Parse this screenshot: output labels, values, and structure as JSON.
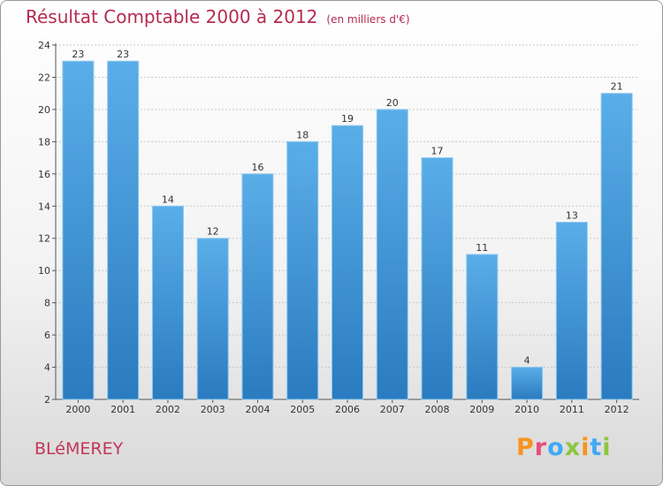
{
  "header": {
    "title": "Résultat Comptable 2000 à 2012",
    "unit": "(en milliers d'€)"
  },
  "footer": {
    "commune": "BLéMEREY",
    "logo": "Proxiti",
    "logo_colors": [
      "#f7941d",
      "#e94e77",
      "#3fa9f5",
      "#8dc63f",
      "#f7941d",
      "#3fa9f5",
      "#8dc63f"
    ]
  },
  "colors": {
    "bar_light": "#5aaee8",
    "bar_dark": "#2a7bbf",
    "title": "#b52a52",
    "gridline": "#c8c8c8"
  },
  "chart_data": {
    "type": "bar",
    "categories": [
      "2000",
      "2001",
      "2002",
      "2003",
      "2004",
      "2005",
      "2006",
      "2007",
      "2008",
      "2009",
      "2010",
      "2011",
      "2012"
    ],
    "values": [
      23,
      23,
      14,
      12,
      16,
      18,
      19,
      20,
      17,
      11,
      4,
      13,
      21
    ],
    "title": "Résultat Comptable 2000 à 2012",
    "subtitle": "(en milliers d'€)",
    "xlabel": "",
    "ylabel": "",
    "ylim": [
      2,
      24
    ],
    "yticks": [
      2,
      4,
      6,
      8,
      10,
      12,
      14,
      16,
      18,
      20,
      22,
      24
    ],
    "grid": true,
    "data_labels": true
  }
}
